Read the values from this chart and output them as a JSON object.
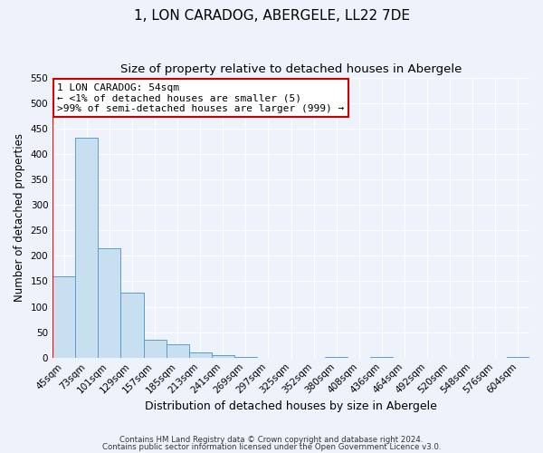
{
  "title": "1, LON CARADOG, ABERGELE, LL22 7DE",
  "subtitle": "Size of property relative to detached houses in Abergele",
  "xlabel": "Distribution of detached houses by size in Abergele",
  "ylabel": "Number of detached properties",
  "bar_labels": [
    "45sqm",
    "73sqm",
    "101sqm",
    "129sqm",
    "157sqm",
    "185sqm",
    "213sqm",
    "241sqm",
    "269sqm",
    "297sqm",
    "325sqm",
    "352sqm",
    "380sqm",
    "408sqm",
    "436sqm",
    "464sqm",
    "492sqm",
    "520sqm",
    "548sqm",
    "576sqm",
    "604sqm"
  ],
  "bar_values": [
    160,
    432,
    215,
    128,
    35,
    26,
    10,
    5,
    2,
    0,
    0,
    0,
    1,
    0,
    1,
    0,
    0,
    0,
    0,
    0,
    2
  ],
  "bar_color": "#c8dff0",
  "bar_edge_color": "#5b9bd5",
  "ylim": [
    0,
    550
  ],
  "yticks": [
    0,
    50,
    100,
    150,
    200,
    250,
    300,
    350,
    400,
    450,
    500,
    550
  ],
  "annotation_title": "1 LON CARADOG: 54sqm",
  "annotation_line1": "← <1% of detached houses are smaller (5)",
  "annotation_line2": ">99% of semi-detached houses are larger (999) →",
  "footer_line1": "Contains HM Land Registry data © Crown copyright and database right 2024.",
  "footer_line2": "Contains public sector information licensed under the Open Government Licence v3.0.",
  "background_color": "#eef2fb",
  "plot_background": "#eef2fb",
  "grid_color": "#ffffff",
  "title_fontsize": 11,
  "subtitle_fontsize": 9.5,
  "annotation_box_color": "#ffffff",
  "annotation_box_edge": "#cc0000"
}
